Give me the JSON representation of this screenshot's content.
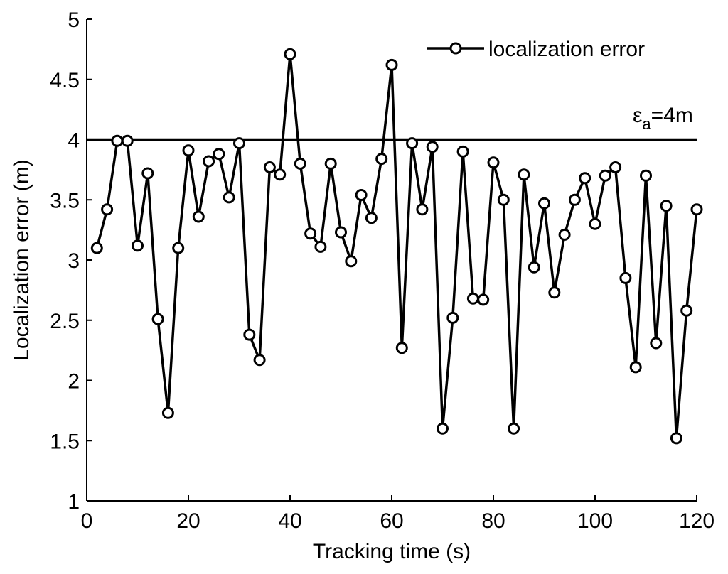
{
  "chart_data": {
    "type": "line",
    "title": "",
    "xlabel": "Tracking time (s)",
    "ylabel": "Localization error (m)",
    "xlim": [
      0,
      120
    ],
    "ylim": [
      1,
      5
    ],
    "xticks": [
      0,
      20,
      40,
      60,
      80,
      100,
      120
    ],
    "xtick_labels": [
      "0",
      "20",
      "40",
      "60",
      "80",
      "100",
      "120"
    ],
    "yticks": [
      1,
      1.5,
      2,
      2.5,
      3,
      3.5,
      4,
      4.5,
      5
    ],
    "ytick_labels": [
      "1",
      "1.5",
      "2",
      "2.5",
      "3",
      "3.5",
      "4",
      "4.5",
      "5"
    ],
    "grid": false,
    "legend_position": "top-right",
    "series": [
      {
        "name": "localization error",
        "marker": "open-circle",
        "color": "#000000",
        "x": [
          2,
          4,
          6,
          8,
          10,
          12,
          14,
          16,
          18,
          20,
          22,
          24,
          26,
          28,
          30,
          32,
          34,
          36,
          38,
          40,
          42,
          44,
          46,
          48,
          50,
          52,
          54,
          56,
          58,
          60,
          62,
          64,
          66,
          68,
          70,
          72,
          74,
          76,
          78,
          80,
          82,
          84,
          86,
          88,
          90,
          92,
          94,
          96,
          98,
          100,
          102,
          104,
          106,
          108,
          110,
          112,
          114,
          116,
          118,
          120
        ],
        "y": [
          3.1,
          3.42,
          3.99,
          3.99,
          3.12,
          3.72,
          2.51,
          1.73,
          3.1,
          3.91,
          3.36,
          3.82,
          3.88,
          3.52,
          3.97,
          2.38,
          2.17,
          3.77,
          3.71,
          4.71,
          3.8,
          3.22,
          3.11,
          3.8,
          3.23,
          2.99,
          3.54,
          3.35,
          3.84,
          4.62,
          2.27,
          3.97,
          3.42,
          3.94,
          1.6,
          2.52,
          3.9,
          2.68,
          2.67,
          3.81,
          3.5,
          1.6,
          3.71,
          2.94,
          3.47,
          2.73,
          3.21,
          3.5,
          3.68,
          3.3,
          3.7,
          3.77,
          2.85,
          2.11,
          3.7,
          2.31,
          3.45,
          1.52,
          2.58,
          3.42
        ]
      }
    ],
    "reference_line": {
      "y": 4,
      "label_main": "ε",
      "label_sub": "a",
      "label_rest": "=4m"
    }
  }
}
